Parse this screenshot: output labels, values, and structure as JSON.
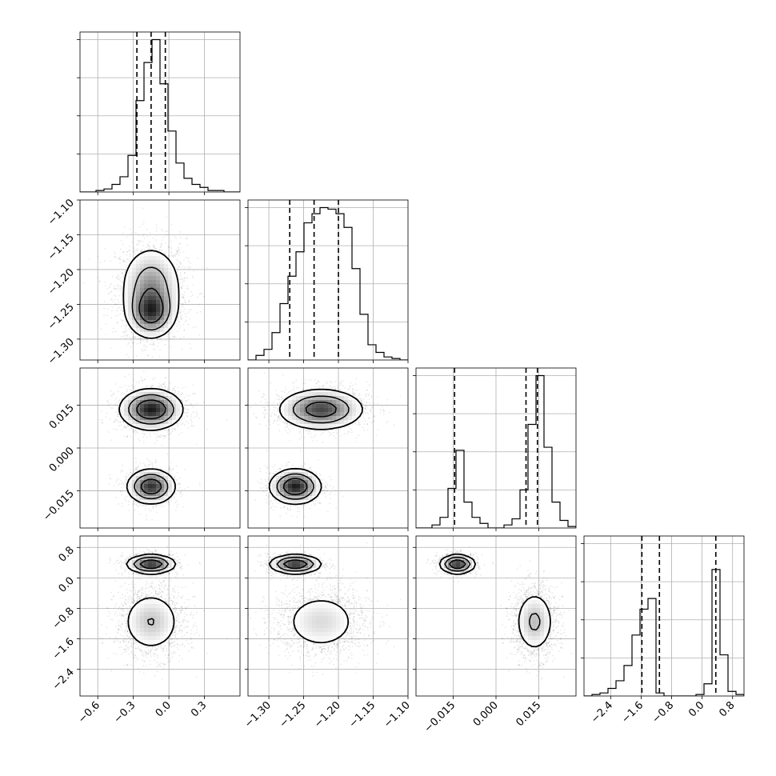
{
  "chart_data": {
    "type": "corner",
    "params": 4,
    "grid": true,
    "ranges": [
      [
        -0.75,
        0.6
      ],
      [
        -1.33,
        -1.1
      ],
      [
        -0.028,
        0.028
      ],
      [
        -3.1,
        1.1
      ]
    ],
    "ticks": [
      {
        "values": [
          -0.6,
          -0.3,
          0.0,
          0.3
        ],
        "labels": [
          "−0.6",
          "−0.3",
          "0.0",
          "0.3"
        ]
      },
      {
        "values": [
          -1.3,
          -1.25,
          -1.2,
          -1.15,
          -1.1
        ],
        "labels": [
          "−1.30",
          "−1.25",
          "−1.20",
          "−1.15",
          "−1.10"
        ]
      },
      {
        "values": [
          -0.015,
          0.0,
          0.015
        ],
        "labels": [
          "−0.015",
          "0.000",
          "0.015"
        ]
      },
      {
        "values": [
          -2.4,
          -1.6,
          -0.8,
          0.0,
          0.8
        ],
        "labels": [
          "−2.4",
          "−1.6",
          "−0.8",
          "0.0",
          "0.8"
        ]
      }
    ],
    "quantiles": [
      [
        -0.27,
        -0.15,
        -0.03
      ],
      [
        -1.27,
        -1.235,
        -1.2
      ],
      [
        -0.0145,
        0.0105,
        0.0145
      ],
      [
        -1.58,
        -1.12,
        0.36
      ]
    ],
    "histograms": [
      {
        "edges": [
          -0.75,
          0.6
        ],
        "counts": [
          0,
          0,
          0.01,
          0.02,
          0.05,
          0.1,
          0.24,
          0.6,
          0.85,
          1.0,
          0.71,
          0.4,
          0.19,
          0.09,
          0.05,
          0.03,
          0.01,
          0.01,
          0,
          0
        ]
      },
      {
        "edges": [
          -1.33,
          -1.1
        ],
        "counts": [
          0,
          0.03,
          0.07,
          0.18,
          0.37,
          0.55,
          0.71,
          0.9,
          0.96,
          1.0,
          0.99,
          0.96,
          0.87,
          0.6,
          0.3,
          0.1,
          0.05,
          0.02,
          0.01,
          0
        ]
      },
      {
        "edges": [
          -0.028,
          0.028
        ],
        "counts": [
          0,
          0,
          0.02,
          0.07,
          0.26,
          0.51,
          0.17,
          0.07,
          0.03,
          0,
          0,
          0.02,
          0.06,
          0.25,
          0.68,
          1.0,
          0.53,
          0.17,
          0.05,
          0.01
        ]
      },
      {
        "edges": [
          -3.1,
          1.1
        ],
        "counts": [
          0,
          0.01,
          0.02,
          0.05,
          0.1,
          0.2,
          0.4,
          0.57,
          0.64,
          0.02,
          0,
          0,
          0,
          0,
          0.01,
          0.08,
          0.83,
          0.27,
          0.03,
          0.01
        ]
      }
    ],
    "components": [
      {
        "weight": 0.62,
        "mean": [
          -0.15,
          -1.225,
          0.0135,
          -1.15
        ],
        "sd": [
          0.13,
          0.03,
          0.0035,
          0.42
        ]
      },
      {
        "weight": 0.38,
        "mean": [
          -0.15,
          -1.262,
          -0.0135,
          0.36
        ],
        "sd": [
          0.1,
          0.018,
          0.003,
          0.12
        ]
      }
    ]
  }
}
